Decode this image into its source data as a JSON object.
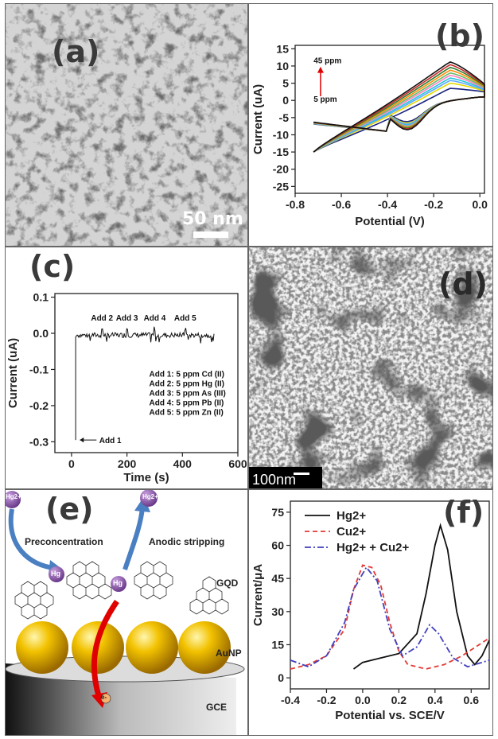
{
  "panels": {
    "a": {
      "label": "(a)",
      "scalebar": "50 nm"
    },
    "b": {
      "label": "(b)"
    },
    "c": {
      "label": "(c)"
    },
    "d": {
      "label": "(d)",
      "scalebar": "100nm"
    },
    "e": {
      "label": "(e)",
      "ion_top_left": "Hg2+",
      "ion_top_right": "Hg2+",
      "ion_mid_left": "Hg",
      "ion_mid_right": "Hg",
      "preconcentration": "Preconcentration",
      "stripping": "Anodic stripping",
      "gqd": "GQD",
      "aunp": "AuNP",
      "gce": "GCE",
      "electron": "e-"
    },
    "f": {
      "label": "(f)"
    }
  },
  "chart_data": [
    {
      "id": "b",
      "type": "line",
      "xlabel": "Potential (V)",
      "ylabel": "Current (uA)",
      "xlim": [
        -0.8,
        0.02
      ],
      "ylim": [
        -27,
        16
      ],
      "xticks": [
        "-0.8",
        "-0.6",
        "-0.4",
        "-0.2",
        "0.0"
      ],
      "xtick_values": [
        -0.8,
        -0.6,
        -0.4,
        -0.2,
        0.0
      ],
      "yticks": [
        "-25",
        "-20",
        "-15",
        "-10",
        "-5",
        "0",
        "5",
        "10",
        "15"
      ],
      "ytick_values": [
        -25,
        -20,
        -15,
        -10,
        -5,
        0,
        5,
        10,
        15
      ],
      "annotations": [
        "45 ppm",
        "5 ppm"
      ],
      "series_colors": [
        "#1a237e",
        "#e6d800",
        "#5fa8ff",
        "#26c6da",
        "#ff80c0",
        "#66bb6a",
        "#ff8a00",
        "#2e7d32",
        "#c62828",
        "#111111"
      ],
      "series": [
        {
          "values_peak": 3.5,
          "values_cath": -8.5
        },
        {
          "values_peak": 5.0,
          "values_cath": -9.3
        },
        {
          "values_peak": 5.8,
          "values_cath": -9.8
        },
        {
          "values_peak": 6.5,
          "values_cath": -10.3
        },
        {
          "values_peak": 7.3,
          "values_cath": -10.8
        },
        {
          "values_peak": 8.0,
          "values_cath": -11.2
        },
        {
          "values_peak": 8.8,
          "values_cath": -11.6
        },
        {
          "values_peak": 9.6,
          "values_cath": -12.0
        },
        {
          "values_peak": 10.4,
          "values_cath": -12.4
        },
        {
          "values_peak": 11.2,
          "values_cath": -12.8
        }
      ]
    },
    {
      "id": "c",
      "type": "line",
      "xlabel": "Time (s)",
      "ylabel": "Current (uA)",
      "xlim": [
        -60,
        600
      ],
      "ylim": [
        -0.33,
        0.11
      ],
      "xticks": [
        "0",
        "200",
        "400",
        "600"
      ],
      "xtick_values": [
        0,
        200,
        400,
        600
      ],
      "yticks": [
        "0.1",
        "0.0",
        "-0.1",
        "-0.2",
        "-0.3"
      ],
      "ytick_values": [
        0.1,
        0,
        -0.1,
        -0.2,
        -0.3
      ],
      "annotations": [
        {
          "text": "Add 1",
          "x": 15,
          "y": -0.295
        },
        {
          "text": "Add 2",
          "x": 110,
          "y": 0.01
        },
        {
          "text": "Add 3",
          "x": 200,
          "y": 0.01
        },
        {
          "text": "Add 4",
          "x": 300,
          "y": 0.01
        },
        {
          "text": "Add 5",
          "x": 410,
          "y": 0.01
        }
      ],
      "legend": [
        "Add 1: 5 ppm Cd (II)",
        "Add 2: 5 ppm Hg (II)",
        "Add 3: 5 ppm As (III)",
        "Add 4: 5 ppm Pb (II)",
        "Add 5: 5 ppm Zn (II)"
      ]
    },
    {
      "id": "f",
      "type": "line",
      "xlabel": "Potential vs. SCE/V",
      "ylabel": "Current/μA",
      "xlim": [
        -0.4,
        0.7
      ],
      "ylim": [
        -5,
        80
      ],
      "xticks": [
        "-0.4",
        "-0.2",
        "0.0",
        "0.2",
        "0.4",
        "0.6"
      ],
      "xtick_values": [
        -0.4,
        -0.2,
        0.0,
        0.2,
        0.4,
        0.6
      ],
      "yticks": [
        "0",
        "15",
        "30",
        "45",
        "60",
        "75"
      ],
      "ytick_values": [
        0,
        15,
        30,
        45,
        60,
        75
      ],
      "series": [
        {
          "name": "Hg2+",
          "color": "#111111",
          "dash": "",
          "x": [
            -0.05,
            0.0,
            0.1,
            0.2,
            0.3,
            0.35,
            0.4,
            0.43,
            0.47,
            0.52,
            0.58,
            0.62,
            0.66,
            0.7
          ],
          "y": [
            4,
            7,
            9,
            11,
            20,
            38,
            60,
            69,
            58,
            30,
            10,
            6,
            10,
            17
          ]
        },
        {
          "name": "Cu2+",
          "color": "#e53935",
          "dash": "6,4",
          "x": [
            -0.4,
            -0.3,
            -0.2,
            -0.1,
            -0.05,
            0.0,
            0.05,
            0.1,
            0.15,
            0.2,
            0.25,
            0.35,
            0.45,
            0.55,
            0.7
          ],
          "y": [
            4,
            6,
            10,
            22,
            40,
            51,
            50,
            42,
            25,
            12,
            6,
            4,
            6,
            10,
            18
          ]
        },
        {
          "name": "Hg2+ + Cu2+",
          "color": "#3f3fbf",
          "dash": "8,3,2,3",
          "x": [
            -0.4,
            -0.3,
            -0.2,
            -0.1,
            -0.05,
            0.02,
            0.08,
            0.15,
            0.22,
            0.3,
            0.37,
            0.42,
            0.5,
            0.58,
            0.62,
            0.7
          ],
          "y": [
            8,
            5,
            10,
            25,
            40,
            50,
            44,
            22,
            10,
            14,
            24,
            20,
            9,
            5,
            6,
            8
          ]
        }
      ],
      "legend": [
        "Hg2+",
        "Cu2+",
        "Hg2+ + Cu2+"
      ]
    }
  ]
}
